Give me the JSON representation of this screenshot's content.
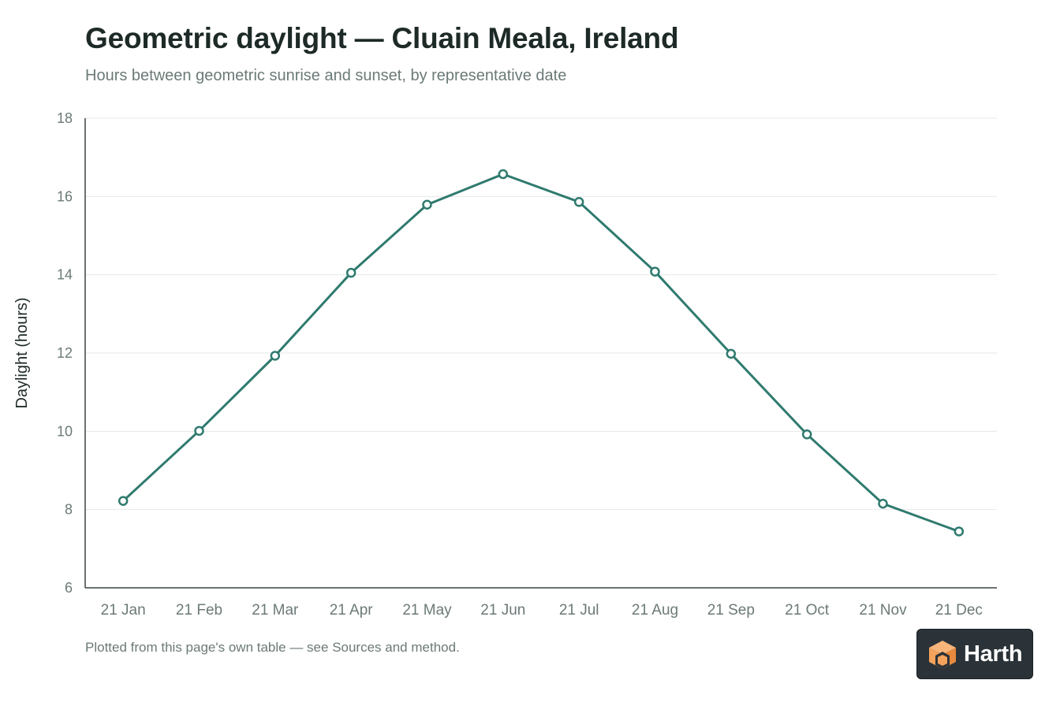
{
  "header": {
    "title": "Geometric daylight — Cluain Meala, Ireland",
    "subtitle": "Hours between geometric sunrise and sunset, by representative date"
  },
  "footer": {
    "note": "Plotted from this page's own table — see Sources and method."
  },
  "brand": {
    "name": "Harth",
    "logo_icon": "house-cube-icon"
  },
  "colors": {
    "line": "#2f7a6e",
    "grid": "#e6e9e8",
    "axis": "#3a4442",
    "tick_text": "#6b7a77",
    "badge_bg": "#2b3338",
    "logo_orange": "#f5a25c"
  },
  "chart_data": {
    "type": "line",
    "title": "Geometric daylight — Cluain Meala, Ireland",
    "subtitle": "Hours between geometric sunrise and sunset, by representative date",
    "xlabel": "",
    "ylabel": "Daylight (hours)",
    "categories": [
      "21 Jan",
      "21 Feb",
      "21 Mar",
      "21 Apr",
      "21 May",
      "21 Jun",
      "21 Jul",
      "21 Aug",
      "21 Sep",
      "21 Oct",
      "21 Nov",
      "21 Dec"
    ],
    "series": [
      {
        "values": [
          8.22,
          10.01,
          11.93,
          14.05,
          15.79,
          16.57,
          15.86,
          14.08,
          11.98,
          9.92,
          8.15,
          7.44
        ]
      }
    ],
    "ylim": [
      6,
      18
    ],
    "yticks": [
      6,
      8,
      10,
      12,
      14,
      16,
      18
    ],
    "grid": true,
    "legend": "none",
    "markers": "hollow-circle"
  }
}
